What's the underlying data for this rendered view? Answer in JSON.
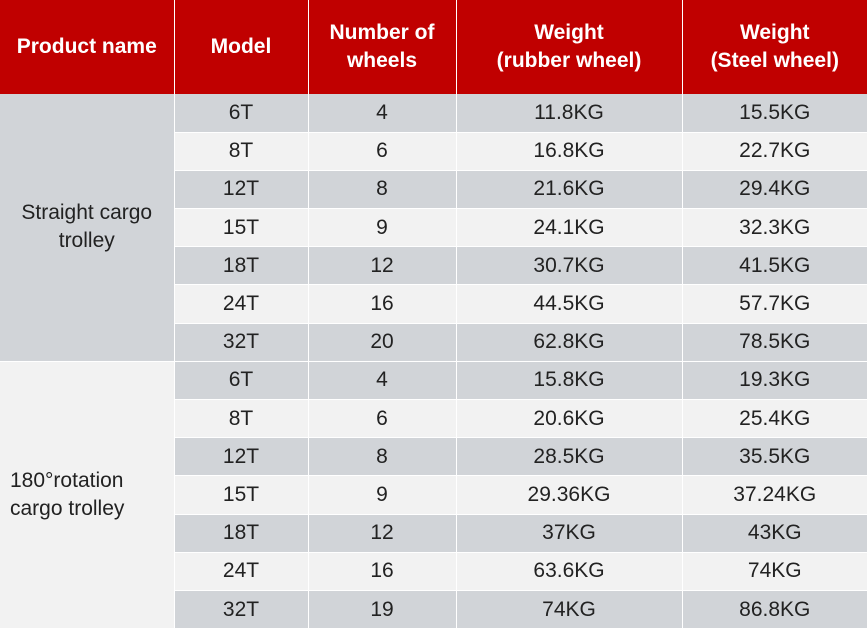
{
  "headers": [
    {
      "lines": [
        "Product name"
      ]
    },
    {
      "lines": [
        "Model"
      ]
    },
    {
      "lines": [
        "Number of",
        "wheels"
      ]
    },
    {
      "lines": [
        "Weight",
        "(rubber wheel)"
      ]
    },
    {
      "lines": [
        "Weight",
        "(Steel wheel)"
      ]
    }
  ],
  "groups": [
    {
      "lines": [
        "Straight cargo",
        "trolley"
      ],
      "rows": [
        [
          "6T",
          "4",
          "11.8KG",
          "15.5KG"
        ],
        [
          "8T",
          "6",
          "16.8KG",
          "22.7KG"
        ],
        [
          "12T",
          "8",
          "21.6KG",
          "29.4KG"
        ],
        [
          "15T",
          "9",
          "24.1KG",
          "32.3KG"
        ],
        [
          "18T",
          "12",
          "30.7KG",
          "41.5KG"
        ],
        [
          "24T",
          "16",
          "44.5KG",
          "57.7KG"
        ],
        [
          "32T",
          "20",
          "62.8KG",
          "78.5KG"
        ]
      ]
    },
    {
      "lines": [
        "180°rotation",
        "cargo trolley"
      ],
      "rows": [
        [
          "6T",
          "4",
          "15.8KG",
          "19.3KG"
        ],
        [
          "8T",
          "6",
          "20.6KG",
          "25.4KG"
        ],
        [
          "12T",
          "8",
          "28.5KG",
          "35.5KG"
        ],
        [
          "15T",
          "9",
          "29.36KG",
          "37.24KG"
        ],
        [
          "18T",
          "12",
          "37KG",
          "43KG"
        ],
        [
          "24T",
          "16",
          "63.6KG",
          "74KG"
        ],
        [
          "32T",
          "19",
          "74KG",
          "86.8KG"
        ]
      ]
    }
  ],
  "colors": {
    "header_bg": "#c00000",
    "header_text": "#ffffff",
    "shade_row": "#d1d4d8",
    "plain_row": "#f2f2f2"
  }
}
